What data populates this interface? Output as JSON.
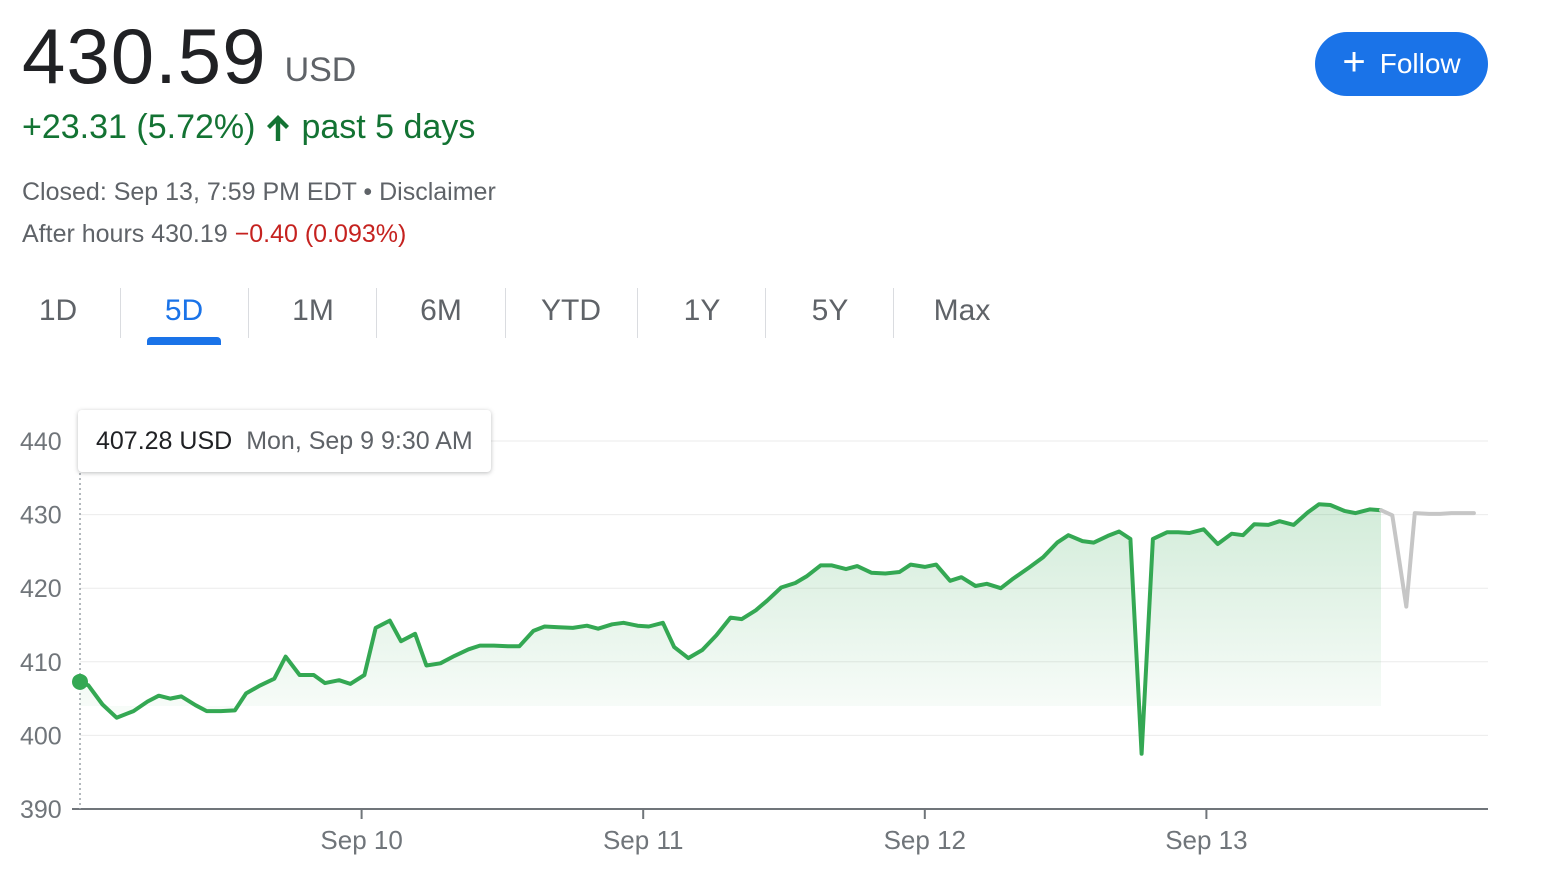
{
  "quote": {
    "price": "430.59",
    "currency": "USD",
    "change": "+23.31 (5.72%)",
    "period": "past 5 days",
    "closed": "Closed: Sep 13, 7:59 PM EDT",
    "separator": "•",
    "disclaimer": "Disclaimer",
    "after_hours_label": "After hours 430.19",
    "after_hours_change": "−0.40 (0.093%)"
  },
  "follow_button": {
    "label": "Follow",
    "icon": "plus-icon",
    "color": "#1a73e8"
  },
  "tabs": [
    {
      "label": "1D",
      "active": false
    },
    {
      "label": "5D",
      "active": true
    },
    {
      "label": "1M",
      "active": false
    },
    {
      "label": "6M",
      "active": false
    },
    {
      "label": "YTD",
      "active": false
    },
    {
      "label": "1Y",
      "active": false
    },
    {
      "label": "5Y",
      "active": false
    },
    {
      "label": "Max",
      "active": false
    }
  ],
  "tooltip": {
    "price": "407.28 USD",
    "time": "Mon, Sep 9 9:30 AM"
  },
  "colors": {
    "up": "#137333",
    "line": "#34a853",
    "after_hours_line": "#c6c6c6",
    "down": "#c5221f",
    "accent": "#1a73e8"
  },
  "chart_data": {
    "type": "line",
    "title": "",
    "xlabel": "",
    "ylabel": "",
    "ylim": [
      390,
      440
    ],
    "yticks": [
      390,
      400,
      410,
      420,
      430,
      440
    ],
    "x_range_days": [
      0,
      5
    ],
    "xticks": [
      {
        "label": "Sep 10",
        "value": 1
      },
      {
        "label": "Sep 11",
        "value": 2
      },
      {
        "label": "Sep 12",
        "value": 3
      },
      {
        "label": "Sep 13",
        "value": 4
      }
    ],
    "grid": true,
    "legend": "none",
    "highlight_point": {
      "x": 0.0,
      "y": 407.28
    },
    "series": [
      {
        "name": "regular",
        "points": [
          [
            0.0,
            407.28
          ],
          [
            0.03,
            406.8
          ],
          [
            0.08,
            404.2
          ],
          [
            0.13,
            402.4
          ],
          [
            0.19,
            403.3
          ],
          [
            0.24,
            404.6
          ],
          [
            0.28,
            405.4
          ],
          [
            0.32,
            405.0
          ],
          [
            0.36,
            405.3
          ],
          [
            0.41,
            404.1
          ],
          [
            0.45,
            403.3
          ],
          [
            0.5,
            403.3
          ],
          [
            0.55,
            403.4
          ],
          [
            0.59,
            405.7
          ],
          [
            0.64,
            406.8
          ],
          [
            0.69,
            407.7
          ],
          [
            0.73,
            410.7
          ],
          [
            0.78,
            408.2
          ],
          [
            0.83,
            408.2
          ],
          [
            0.87,
            407.1
          ],
          [
            0.92,
            407.5
          ],
          [
            0.96,
            407.0
          ],
          [
            1.01,
            408.2
          ],
          [
            1.05,
            414.6
          ],
          [
            1.1,
            415.6
          ],
          [
            1.14,
            412.8
          ],
          [
            1.19,
            413.8
          ],
          [
            1.23,
            409.5
          ],
          [
            1.28,
            409.8
          ],
          [
            1.33,
            410.8
          ],
          [
            1.38,
            411.7
          ],
          [
            1.42,
            412.2
          ],
          [
            1.47,
            412.2
          ],
          [
            1.52,
            412.1
          ],
          [
            1.56,
            412.1
          ],
          [
            1.61,
            414.2
          ],
          [
            1.65,
            414.8
          ],
          [
            1.7,
            414.7
          ],
          [
            1.75,
            414.6
          ],
          [
            1.8,
            414.9
          ],
          [
            1.84,
            414.5
          ],
          [
            1.89,
            415.1
          ],
          [
            1.93,
            415.3
          ],
          [
            1.98,
            414.9
          ],
          [
            2.02,
            414.8
          ],
          [
            2.07,
            415.3
          ],
          [
            2.11,
            412.0
          ],
          [
            2.16,
            410.5
          ],
          [
            2.21,
            411.6
          ],
          [
            2.26,
            413.6
          ],
          [
            2.31,
            416.0
          ],
          [
            2.35,
            415.8
          ],
          [
            2.4,
            417.0
          ],
          [
            2.44,
            418.3
          ],
          [
            2.49,
            420.1
          ],
          [
            2.54,
            420.7
          ],
          [
            2.58,
            421.6
          ],
          [
            2.63,
            423.1
          ],
          [
            2.67,
            423.1
          ],
          [
            2.72,
            422.6
          ],
          [
            2.76,
            423.0
          ],
          [
            2.81,
            422.1
          ],
          [
            2.86,
            422.0
          ],
          [
            2.91,
            422.2
          ],
          [
            2.95,
            423.2
          ],
          [
            3.0,
            422.9
          ],
          [
            3.04,
            423.2
          ],
          [
            3.09,
            421.0
          ],
          [
            3.13,
            421.5
          ],
          [
            3.18,
            420.3
          ],
          [
            3.22,
            420.6
          ],
          [
            3.27,
            420.0
          ],
          [
            3.31,
            421.2
          ],
          [
            3.37,
            422.8
          ],
          [
            3.42,
            424.2
          ],
          [
            3.47,
            426.2
          ],
          [
            3.51,
            427.2
          ],
          [
            3.56,
            426.4
          ],
          [
            3.6,
            426.2
          ],
          [
            3.65,
            427.1
          ],
          [
            3.69,
            427.7
          ],
          [
            3.73,
            426.7
          ],
          [
            3.77,
            397.5
          ],
          [
            3.81,
            426.7
          ],
          [
            3.86,
            427.6
          ],
          [
            3.9,
            427.6
          ],
          [
            3.94,
            427.5
          ],
          [
            3.99,
            428.0
          ],
          [
            4.04,
            426.0
          ],
          [
            4.09,
            427.4
          ],
          [
            4.13,
            427.2
          ],
          [
            4.17,
            428.7
          ],
          [
            4.22,
            428.6
          ],
          [
            4.26,
            429.1
          ],
          [
            4.31,
            428.6
          ],
          [
            4.36,
            430.3
          ],
          [
            4.4,
            431.4
          ],
          [
            4.44,
            431.3
          ],
          [
            4.49,
            430.5
          ],
          [
            4.53,
            430.2
          ],
          [
            4.58,
            430.7
          ],
          [
            4.62,
            430.6
          ]
        ]
      },
      {
        "name": "after_hours",
        "points": [
          [
            4.62,
            430.6
          ],
          [
            4.66,
            429.9
          ],
          [
            4.71,
            417.5
          ],
          [
            4.74,
            430.2
          ],
          [
            4.79,
            430.1
          ],
          [
            4.83,
            430.1
          ],
          [
            4.87,
            430.2
          ],
          [
            4.92,
            430.2
          ],
          [
            4.95,
            430.2
          ]
        ]
      }
    ]
  }
}
